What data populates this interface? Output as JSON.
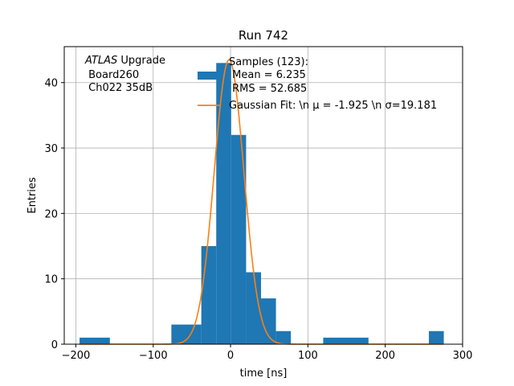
{
  "chart_data": {
    "type": "bar",
    "title": "Run 742",
    "xlabel": "time [ns]",
    "ylabel": "Entries",
    "xlim": [
      -215,
      300
    ],
    "ylim": [
      0,
      45.5
    ],
    "grid": true,
    "x_ticks": [
      -200,
      -100,
      0,
      100,
      200,
      300
    ],
    "y_ticks": [
      0,
      10,
      20,
      30,
      40
    ],
    "bar_color": "#1f77b4",
    "fit_color": "#ff7f0e",
    "bins": [
      {
        "x0": -195.2,
        "x1": -156.0,
        "count": 1
      },
      {
        "x0": -76.5,
        "x1": -37.8,
        "count": 3
      },
      {
        "x0": -37.8,
        "x1": -18.5,
        "count": 15
      },
      {
        "x0": -18.5,
        "x1": 0.8,
        "count": 43
      },
      {
        "x0": 0.8,
        "x1": 20.1,
        "count": 32
      },
      {
        "x0": 20.1,
        "x1": 39.4,
        "count": 11
      },
      {
        "x0": 39.4,
        "x1": 58.7,
        "count": 7
      },
      {
        "x0": 58.7,
        "x1": 78.0,
        "count": 2
      },
      {
        "x0": 119.8,
        "x1": 178.3,
        "count": 1
      },
      {
        "x0": 256.4,
        "x1": 275.7,
        "count": 2
      }
    ],
    "fit": {
      "mu": -1.925,
      "sigma": 19.181,
      "amplitude": 43.5
    },
    "legend": {
      "placement": "top-right",
      "hist_label_lines": [
        "Samples (123):",
        " Mean = 6.235",
        " RMS = 52.685"
      ],
      "fit_label": "Gaussian Fit: \\n μ = -1.925 \\n σ=19.181"
    },
    "annotation": {
      "placement": "top-left",
      "line1_italic": "ATLAS",
      "line1_rest": " Upgrade",
      "line2": " Board260",
      "line3": " Ch022 35dB"
    }
  }
}
